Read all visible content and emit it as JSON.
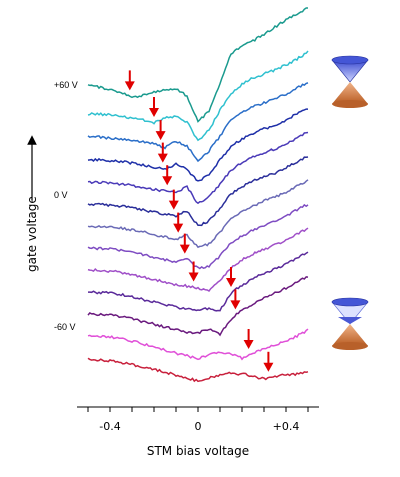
{
  "chart_data": {
    "type": "line",
    "xlabel": "STM bias voltage",
    "ylabel": "gate voltage",
    "xlim": [
      -0.55,
      0.55
    ],
    "x_ticks": [
      -0.4,
      0,
      0.4
    ],
    "x_tick_labels": [
      "-0.4",
      "0",
      "+0.4"
    ],
    "grid": false,
    "legend": "none",
    "gate_labels": [
      {
        "text": "+60 V",
        "series_index": 0
      },
      {
        "text": "0 V",
        "series_index": 5
      },
      {
        "text": "-60 V",
        "series_index": 11
      }
    ],
    "icons": [
      {
        "name": "dirac-cone-hole-doped-icon",
        "filled_cone": "lower",
        "series_index": 0
      },
      {
        "name": "dirac-cone-electron-doped-icon",
        "filled_cone": "upper",
        "series_index": 11
      }
    ],
    "x": [
      -0.5,
      -0.45,
      -0.4,
      -0.35,
      -0.3,
      -0.25,
      -0.2,
      -0.15,
      -0.1,
      -0.05,
      0,
      0.05,
      0.1,
      0.15,
      0.2,
      0.25,
      0.3,
      0.35,
      0.4,
      0.45,
      0.5
    ],
    "series": [
      {
        "color": "#1a9a8e",
        "values": [
          1.2,
          1.1,
          0.85,
          0.6,
          0.05,
          0.3,
          0.6,
          0.8,
          0.9,
          0.2,
          -2.4,
          -1.3,
          1.4,
          4.4,
          5.2,
          5.7,
          6.4,
          7.1,
          7.8,
          8.4,
          9.0
        ],
        "dirac_point": -0.31
      },
      {
        "color": "#2fc0cf",
        "values": [
          0.6,
          0.6,
          0.5,
          0.35,
          0.2,
          0.05,
          -0.3,
          0.2,
          0.3,
          -0.2,
          -2.1,
          -1.0,
          1.0,
          2.6,
          3.6,
          4.2,
          4.6,
          5.0,
          5.5,
          6.1,
          6.8
        ],
        "dirac_point": -0.2
      },
      {
        "color": "#2a6ec8",
        "values": [
          0.5,
          0.5,
          0.4,
          0.3,
          0.2,
          0.0,
          -0.2,
          -0.55,
          0.1,
          -0.4,
          -1.9,
          -0.9,
          0.6,
          2.2,
          3.0,
          3.5,
          3.9,
          4.3,
          4.8,
          5.4,
          6.0
        ],
        "dirac_point": -0.17
      },
      {
        "color": "#1e2fa8",
        "values": [
          0.4,
          0.4,
          0.35,
          0.25,
          0.1,
          -0.1,
          -0.3,
          -0.5,
          -0.05,
          -0.5,
          -1.8,
          -1.0,
          0.4,
          1.8,
          2.5,
          3.1,
          3.5,
          3.9,
          4.4,
          5.0,
          5.6
        ],
        "dirac_point": -0.16
      },
      {
        "color": "#4a3ab8",
        "values": [
          0.4,
          0.35,
          0.3,
          0.2,
          0.05,
          -0.15,
          -0.35,
          -0.5,
          -0.6,
          -0.1,
          -1.8,
          -1.1,
          0.2,
          1.6,
          2.3,
          2.9,
          3.3,
          3.7,
          4.2,
          4.8,
          5.4
        ],
        "dirac_point": -0.14
      },
      {
        "color": "#2a2e9a",
        "values": [
          0.4,
          0.35,
          0.3,
          0.2,
          0.0,
          -0.2,
          -0.4,
          -0.6,
          -0.8,
          -0.3,
          -1.8,
          -1.3,
          0.0,
          1.4,
          2.1,
          2.7,
          3.1,
          3.5,
          4.0,
          4.6,
          5.2
        ],
        "dirac_point": -0.11
      },
      {
        "color": "#6a6ab6",
        "values": [
          0.4,
          0.35,
          0.3,
          0.2,
          0.0,
          -0.2,
          -0.45,
          -0.7,
          -0.95,
          -0.5,
          -1.7,
          -1.4,
          -0.2,
          1.1,
          1.8,
          2.4,
          2.9,
          3.3,
          3.8,
          4.4,
          5.0
        ],
        "dirac_point": -0.09
      },
      {
        "color": "#7e4cc2",
        "values": [
          0.4,
          0.35,
          0.3,
          0.15,
          -0.05,
          -0.25,
          -0.5,
          -0.75,
          -1.0,
          -0.7,
          -1.6,
          -1.5,
          -0.4,
          0.9,
          1.6,
          2.2,
          2.7,
          3.1,
          3.6,
          4.2,
          4.8
        ],
        "dirac_point": -0.06
      },
      {
        "color": "#a050c8",
        "values": [
          0.4,
          0.35,
          0.3,
          0.15,
          -0.1,
          -0.3,
          -0.55,
          -0.8,
          -1.05,
          -1.2,
          -1.45,
          -1.6,
          -0.7,
          0.6,
          1.4,
          2.0,
          2.5,
          2.9,
          3.4,
          4.0,
          4.6
        ],
        "dirac_point": -0.02
      },
      {
        "color": "#5a2a9a",
        "values": [
          0.4,
          0.35,
          0.3,
          0.15,
          -0.1,
          -0.35,
          -0.6,
          -0.85,
          -1.1,
          -1.3,
          -1.4,
          -1.2,
          -1.5,
          0.3,
          1.1,
          1.7,
          2.3,
          2.7,
          3.2,
          3.8,
          4.4
        ],
        "dirac_point": 0.15
      },
      {
        "color": "#6a1a7e",
        "values": [
          0.4,
          0.35,
          0.3,
          0.15,
          -0.1,
          -0.35,
          -0.6,
          -0.9,
          -1.15,
          -1.4,
          -1.5,
          -1.1,
          -1.6,
          -0.1,
          0.8,
          1.4,
          2.0,
          2.5,
          3.0,
          3.6,
          4.2
        ],
        "dirac_point": 0.17
      },
      {
        "color": "#e050d8",
        "values": [
          0.5,
          0.4,
          0.3,
          0.15,
          -0.1,
          -0.4,
          -0.7,
          -1.0,
          -1.3,
          -1.6,
          -1.9,
          -1.4,
          -1.2,
          -1.4,
          -1.8,
          -1.3,
          -0.8,
          -0.5,
          -0.1,
          0.4,
          1.0
        ],
        "dirac_point": 0.23
      },
      {
        "color": "#c8203c",
        "values": [
          0.3,
          0.2,
          0.1,
          -0.05,
          -0.25,
          -0.5,
          -0.75,
          -1.0,
          -1.3,
          -1.6,
          -1.9,
          -1.6,
          -1.3,
          -1.1,
          -1.2,
          -1.4,
          -1.7,
          -1.4,
          -1.3,
          -1.2,
          -1.0
        ],
        "dirac_point": 0.32
      }
    ]
  }
}
